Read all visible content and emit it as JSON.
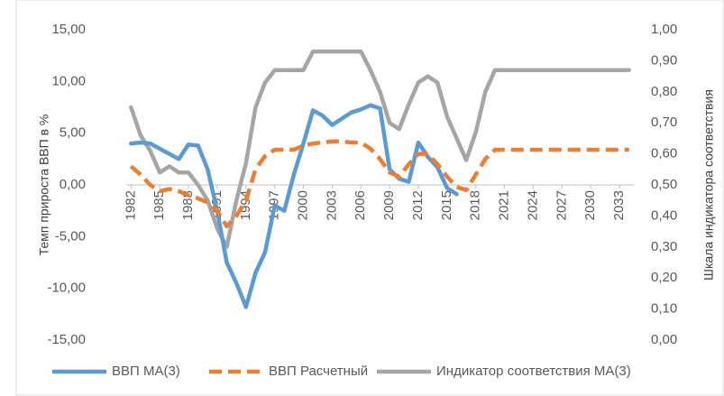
{
  "chart_data": {
    "type": "line",
    "ylabel": "Темп прироста ВВП в %",
    "y2label": "Шкала индикатора соответствия",
    "x": [
      1982,
      1983,
      1984,
      1985,
      1986,
      1987,
      1988,
      1989,
      1990,
      1991,
      1992,
      1993,
      1994,
      1995,
      1996,
      1997,
      1998,
      1999,
      2000,
      2001,
      2002,
      2003,
      2004,
      2005,
      2006,
      2007,
      2008,
      2009,
      2010,
      2011,
      2012,
      2013,
      2014,
      2015,
      2016,
      2017,
      2018,
      2019,
      2020,
      2021,
      2022,
      2023,
      2024,
      2025,
      2026,
      2027,
      2028,
      2029,
      2030,
      2031,
      2032,
      2033,
      2034
    ],
    "xlim": [
      1981.5,
      2034.5
    ],
    "xticks": [
      1982,
      1985,
      1988,
      1991,
      1994,
      1997,
      2000,
      2003,
      2006,
      2009,
      2012,
      2015,
      2018,
      2021,
      2024,
      2027,
      2030,
      2033
    ],
    "ylim": [
      -15,
      15
    ],
    "yticks": [
      {
        "value": -15,
        "label": "-15,00"
      },
      {
        "value": -10,
        "label": "-10,00"
      },
      {
        "value": -5,
        "label": "-5,00"
      },
      {
        "value": 0,
        "label": "0,00"
      },
      {
        "value": 5,
        "label": "5,00"
      },
      {
        "value": 10,
        "label": "10,00"
      },
      {
        "value": 15,
        "label": "15,00"
      }
    ],
    "y2lim": [
      0,
      1
    ],
    "y2ticks": [
      {
        "value": 0,
        "label": "0,00"
      },
      {
        "value": 0.1,
        "label": "0,10"
      },
      {
        "value": 0.2,
        "label": "0,20"
      },
      {
        "value": 0.3,
        "label": "0,30"
      },
      {
        "value": 0.4,
        "label": "0,40"
      },
      {
        "value": 0.5,
        "label": "0,50"
      },
      {
        "value": 0.6,
        "label": "0,60"
      },
      {
        "value": 0.7,
        "label": "0,70"
      },
      {
        "value": 0.8,
        "label": "0,80"
      },
      {
        "value": 0.9,
        "label": "0,90"
      },
      {
        "value": 1,
        "label": "1,00"
      }
    ],
    "grid": false,
    "legend": "bottom",
    "series": [
      {
        "name": "ВВП МА(3)",
        "color": "#5b9bd5",
        "dash": false,
        "values": [
          4.0,
          4.1,
          4.0,
          3.5,
          3.0,
          2.5,
          3.9,
          3.8,
          1.5,
          -2.5,
          -7.5,
          -9.5,
          -11.8,
          -8.5,
          -6.5,
          -2.0,
          -2.5,
          1.0,
          4.0,
          7.2,
          6.7,
          5.8,
          6.4,
          7.0,
          7.3,
          7.7,
          7.4,
          1.5,
          0.6,
          0.3,
          4.1,
          2.7,
          1.7,
          -0.3,
          -0.9,
          null,
          null,
          null,
          null,
          null,
          null,
          null,
          null,
          null,
          null,
          null,
          null,
          null,
          null,
          null,
          null,
          null,
          null
        ]
      },
      {
        "name": "ВВП Расчетный",
        "color": "#ed7d31",
        "dash": true,
        "values": [
          1.8,
          1.0,
          0.0,
          -0.6,
          -0.4,
          -0.6,
          -1.0,
          -1.3,
          -1.7,
          -2.5,
          -4.0,
          -3.0,
          -1.5,
          1.5,
          2.8,
          3.4,
          3.4,
          3.4,
          3.8,
          4.0,
          4.1,
          4.2,
          4.2,
          4.1,
          4.1,
          3.5,
          2.5,
          1.2,
          0.8,
          2.0,
          3.0,
          3.0,
          2.0,
          0.8,
          -0.2,
          -0.5,
          1.0,
          2.5,
          3.4,
          3.4,
          3.4,
          3.4,
          3.4,
          3.4,
          3.4,
          3.4,
          3.4,
          3.4,
          3.4,
          3.4,
          3.4,
          3.4,
          3.4
        ]
      },
      {
        "name": "Индикатор соответствия МА(3)",
        "color": "#a5a5a5",
        "dash": false,
        "axis": "y2",
        "values": [
          0.75,
          0.66,
          0.61,
          0.54,
          0.56,
          0.54,
          0.54,
          0.5,
          0.45,
          0.36,
          0.3,
          0.45,
          0.57,
          0.75,
          0.83,
          0.87,
          0.87,
          0.87,
          0.87,
          0.93,
          0.93,
          0.93,
          0.93,
          0.93,
          0.93,
          0.87,
          0.8,
          0.7,
          0.68,
          0.76,
          0.83,
          0.85,
          0.83,
          0.72,
          0.65,
          0.58,
          0.67,
          0.8,
          0.87,
          0.87,
          0.87,
          0.87,
          0.87,
          0.87,
          0.87,
          0.87,
          0.87,
          0.87,
          0.87,
          0.87,
          0.87,
          0.87,
          0.87
        ]
      }
    ]
  }
}
